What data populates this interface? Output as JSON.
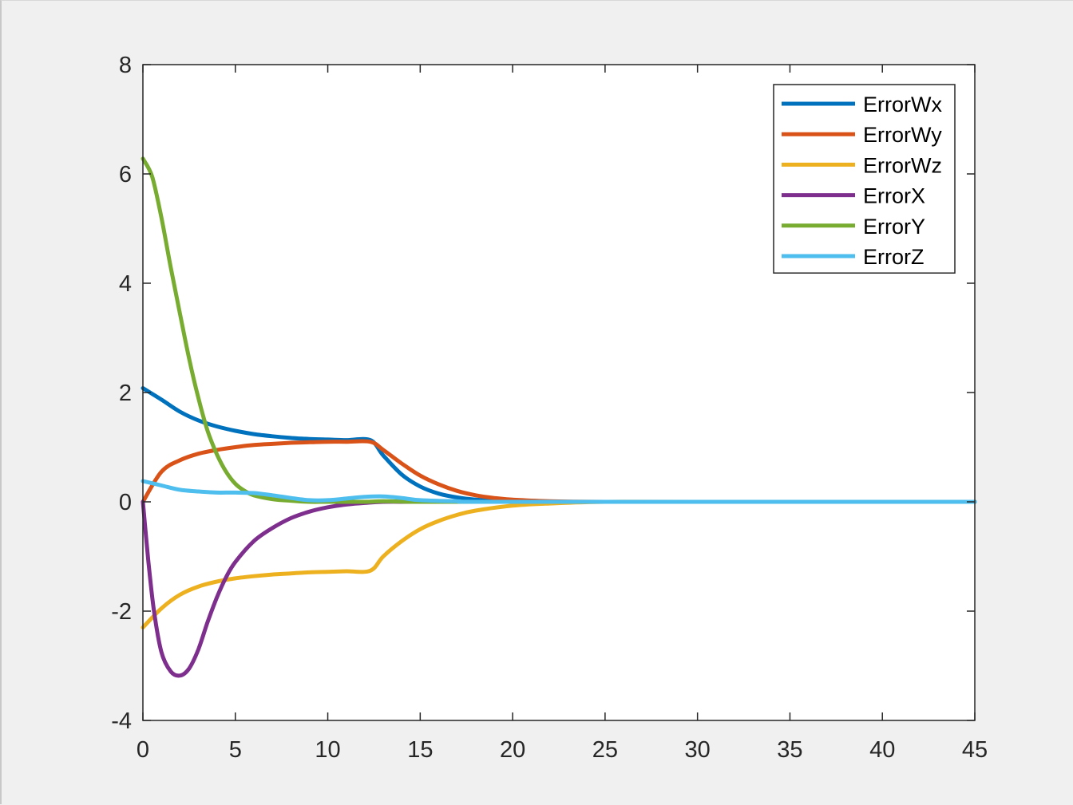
{
  "chart_data": {
    "type": "line",
    "title": "",
    "xlabel": "",
    "ylabel": "",
    "xlim": [
      0,
      45
    ],
    "ylim": [
      -4,
      8
    ],
    "xticks": [
      0,
      5,
      10,
      15,
      20,
      25,
      30,
      35,
      40,
      45
    ],
    "yticks": [
      -4,
      -2,
      0,
      2,
      4,
      6,
      8
    ],
    "grid": false,
    "legend_position": "top-right",
    "series": [
      {
        "name": "ErrorWx",
        "color": "#0072BD",
        "x": [
          0,
          1,
          2,
          3,
          4,
          5,
          6,
          7,
          8,
          9,
          10,
          11,
          12.3,
          13,
          14,
          15,
          16,
          17,
          18,
          19,
          20,
          22,
          25,
          30,
          45
        ],
        "y": [
          2.08,
          1.87,
          1.65,
          1.49,
          1.38,
          1.3,
          1.24,
          1.2,
          1.17,
          1.15,
          1.14,
          1.13,
          1.13,
          0.85,
          0.5,
          0.28,
          0.15,
          0.08,
          0.04,
          0.02,
          0.01,
          0.0,
          0.0,
          0.0,
          0.0
        ]
      },
      {
        "name": "ErrorWy",
        "color": "#D95319",
        "x": [
          0,
          1,
          2,
          3,
          4,
          5,
          6,
          7,
          8,
          9,
          10,
          11,
          12.3,
          13,
          14,
          15,
          16,
          17,
          18,
          19,
          20,
          22,
          25,
          30,
          45
        ],
        "y": [
          0.0,
          0.55,
          0.76,
          0.88,
          0.95,
          1.0,
          1.04,
          1.06,
          1.08,
          1.09,
          1.1,
          1.1,
          1.1,
          0.95,
          0.7,
          0.48,
          0.32,
          0.2,
          0.12,
          0.07,
          0.04,
          0.01,
          0.0,
          0.0,
          0.0
        ]
      },
      {
        "name": "ErrorWz",
        "color": "#EDB120",
        "x": [
          0,
          1,
          2,
          3,
          4,
          5,
          6,
          7,
          8,
          9,
          10,
          11,
          12.3,
          13,
          14,
          15,
          16,
          17,
          18,
          20,
          22,
          25,
          30,
          45
        ],
        "y": [
          -2.3,
          -1.95,
          -1.7,
          -1.55,
          -1.46,
          -1.4,
          -1.36,
          -1.33,
          -1.31,
          -1.29,
          -1.28,
          -1.27,
          -1.26,
          -1.0,
          -0.72,
          -0.5,
          -0.35,
          -0.24,
          -0.16,
          -0.07,
          -0.03,
          0.0,
          0.0,
          0.0
        ]
      },
      {
        "name": "ErrorX",
        "color": "#7E2F8E",
        "x": [
          0,
          0.3,
          0.6,
          1,
          1.5,
          2,
          2.5,
          3,
          3.5,
          4,
          4.5,
          5,
          6,
          7,
          8,
          9,
          10,
          11,
          12,
          13,
          15,
          20,
          45
        ],
        "y": [
          0.0,
          -1.1,
          -2.0,
          -2.75,
          -3.1,
          -3.18,
          -3.05,
          -2.7,
          -2.2,
          -1.75,
          -1.38,
          -1.1,
          -0.72,
          -0.48,
          -0.3,
          -0.18,
          -0.1,
          -0.05,
          -0.02,
          0.0,
          0.0,
          0.0,
          0.0
        ]
      },
      {
        "name": "ErrorY",
        "color": "#77AC30",
        "x": [
          0,
          0.5,
          1,
          1.5,
          2,
          2.5,
          3,
          3.5,
          4,
          4.5,
          5,
          5.5,
          6,
          7,
          8,
          9,
          10,
          12,
          13,
          15,
          20,
          45
        ],
        "y": [
          6.28,
          5.95,
          5.2,
          4.3,
          3.45,
          2.62,
          1.9,
          1.3,
          0.87,
          0.55,
          0.33,
          0.2,
          0.12,
          0.05,
          0.02,
          0.0,
          0.0,
          0.0,
          0.01,
          0.0,
          0.0,
          0.0
        ]
      },
      {
        "name": "ErrorZ",
        "color": "#4DBEEE",
        "x": [
          0,
          1,
          2,
          3,
          4,
          5,
          6,
          7,
          8,
          9,
          10,
          11,
          12,
          13,
          14,
          15,
          17,
          20,
          45
        ],
        "y": [
          0.38,
          0.3,
          0.22,
          0.19,
          0.17,
          0.17,
          0.16,
          0.12,
          0.07,
          0.03,
          0.03,
          0.06,
          0.09,
          0.1,
          0.07,
          0.03,
          0.01,
          0.0,
          0.0
        ]
      }
    ]
  }
}
